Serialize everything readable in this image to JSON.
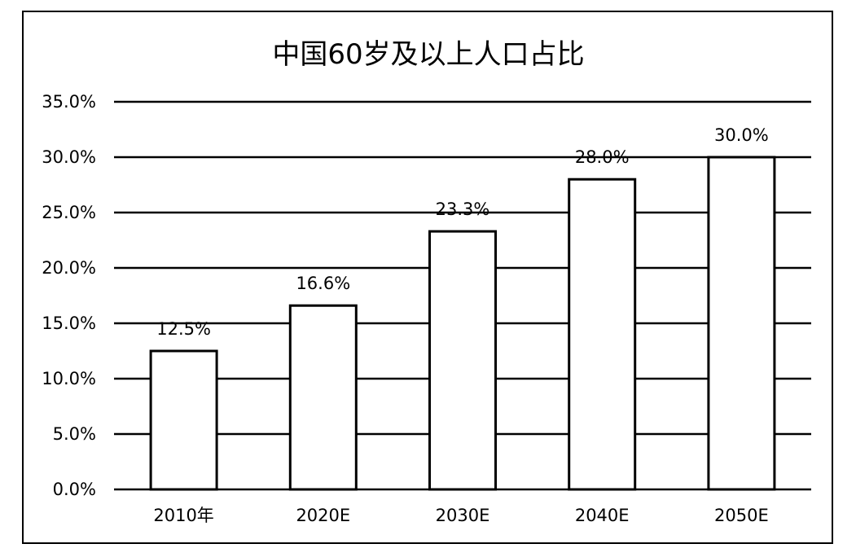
{
  "chart_data": {
    "type": "bar",
    "title": "中国60岁及以上人口占比",
    "xlabel": "",
    "ylabel": "",
    "categories": [
      "2010年",
      "2020E",
      "2030E",
      "2040E",
      "2050E"
    ],
    "values": [
      12.5,
      16.6,
      23.3,
      28.0,
      30.0
    ],
    "data_labels": [
      "12.5%",
      "16.6%",
      "23.3%",
      "28.0%",
      "30.0%"
    ],
    "ylim": [
      0,
      35
    ],
    "yticks": [
      0,
      5,
      10,
      15,
      20,
      25,
      30,
      35
    ],
    "ytick_labels": [
      "0.0%",
      "5.0%",
      "10.0%",
      "15.0%",
      "20.0%",
      "25.0%",
      "30.0%",
      "35.0%"
    ],
    "grid": true,
    "legend": "none",
    "colors": {
      "bar_fill": "#ffffff",
      "bar_stroke": "#000000",
      "grid": "#000000",
      "text": "#000000"
    }
  }
}
